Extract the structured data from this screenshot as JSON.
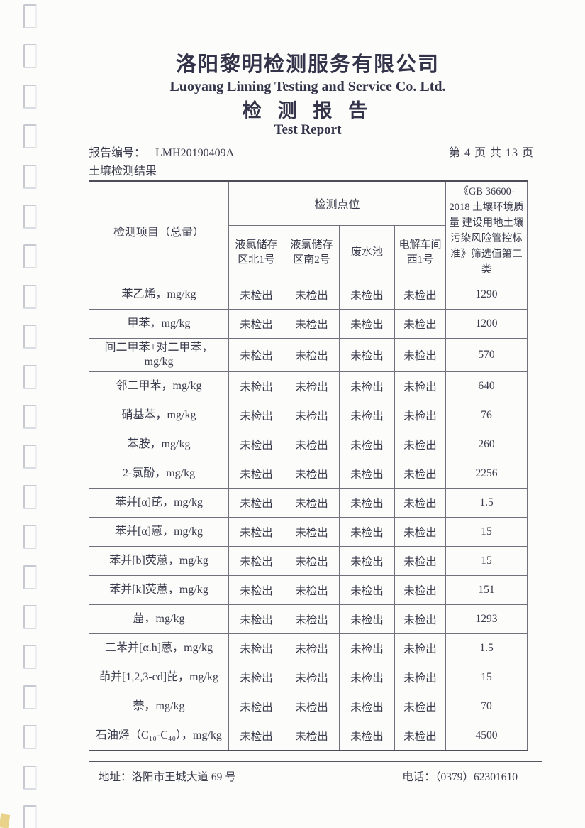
{
  "header": {
    "company_cn": "洛阳黎明检测服务有限公司",
    "company_en": "Luoyang Liming Testing and Service Co. Ltd.",
    "report_title_cn": "检 测 报 告",
    "report_title_en": "Test Report",
    "report_no_label": "报告编号：",
    "report_no": "LMH20190409A",
    "page_info": "第 4 页 共 13 页",
    "section_title": "土壤检测结果"
  },
  "table": {
    "col_item_header": "检测项目（总量）",
    "points_group_header": "检测点位",
    "point_headers": [
      "液氯储存区北1号",
      "液氯储存区南2号",
      "废水池",
      "电解车间西1号"
    ],
    "standard_header": "《GB 36600-2018 土壤环境质量 建设用地土壤污染风险管控标准》筛选值第二类",
    "rows": [
      {
        "item": "苯乙烯，mg/kg",
        "values": [
          "未检出",
          "未检出",
          "未检出",
          "未检出"
        ],
        "limit": "1290"
      },
      {
        "item": "甲苯，mg/kg",
        "values": [
          "未检出",
          "未检出",
          "未检出",
          "未检出"
        ],
        "limit": "1200"
      },
      {
        "item": "间二甲苯+对二甲苯，mg/kg",
        "values": [
          "未检出",
          "未检出",
          "未检出",
          "未检出"
        ],
        "limit": "570"
      },
      {
        "item": "邻二甲苯，mg/kg",
        "values": [
          "未检出",
          "未检出",
          "未检出",
          "未检出"
        ],
        "limit": "640"
      },
      {
        "item": "硝基苯，mg/kg",
        "values": [
          "未检出",
          "未检出",
          "未检出",
          "未检出"
        ],
        "limit": "76"
      },
      {
        "item": "苯胺，mg/kg",
        "values": [
          "未检出",
          "未检出",
          "未检出",
          "未检出"
        ],
        "limit": "260"
      },
      {
        "item": "2-氯酚，mg/kg",
        "values": [
          "未检出",
          "未检出",
          "未检出",
          "未检出"
        ],
        "limit": "2256"
      },
      {
        "item": "苯并[α]芘，mg/kg",
        "values": [
          "未检出",
          "未检出",
          "未检出",
          "未检出"
        ],
        "limit": "1.5"
      },
      {
        "item": "苯并[α]蒽，mg/kg",
        "values": [
          "未检出",
          "未检出",
          "未检出",
          "未检出"
        ],
        "limit": "15"
      },
      {
        "item": "苯并[b]荧蒽，mg/kg",
        "values": [
          "未检出",
          "未检出",
          "未检出",
          "未检出"
        ],
        "limit": "15"
      },
      {
        "item": "苯并[k]荧蒽，mg/kg",
        "values": [
          "未检出",
          "未检出",
          "未检出",
          "未检出"
        ],
        "limit": "151"
      },
      {
        "item": "䓛，mg/kg",
        "values": [
          "未检出",
          "未检出",
          "未检出",
          "未检出"
        ],
        "limit": "1293"
      },
      {
        "item": "二苯并[α.h]蒽，mg/kg",
        "values": [
          "未检出",
          "未检出",
          "未检出",
          "未检出"
        ],
        "limit": "1.5"
      },
      {
        "item": "茚并[1,2,3-cd]芘，mg/kg",
        "values": [
          "未检出",
          "未检出",
          "未检出",
          "未检出"
        ],
        "limit": "15"
      },
      {
        "item": "萘，mg/kg",
        "values": [
          "未检出",
          "未检出",
          "未检出",
          "未检出"
        ],
        "limit": "70"
      },
      {
        "item": "石油烃（C₁₀-C₄₀），mg/kg",
        "values": [
          "未检出",
          "未检出",
          "未检出",
          "未检出"
        ],
        "limit": "4500"
      }
    ]
  },
  "footer": {
    "address": "地址：洛阳市王城大道 69 号",
    "phone": "电话：（0379）62301610"
  }
}
